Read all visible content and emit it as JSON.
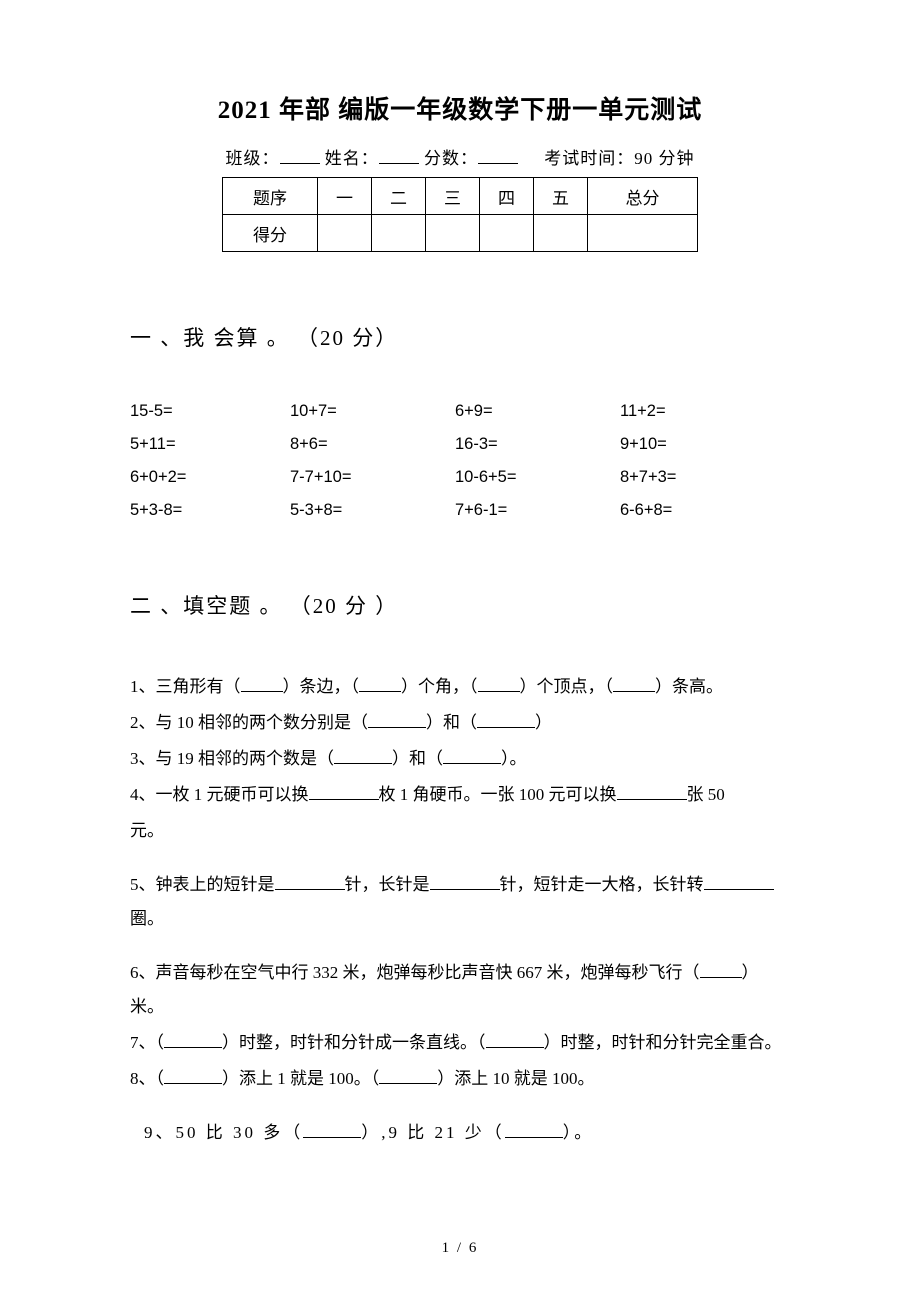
{
  "title": "2021 年部 编版一年级数学下册一单元测试",
  "info": {
    "class_label": "班级：",
    "name_label": "姓名：",
    "score_label": "分数：",
    "time_label": "考试时间：90 分钟"
  },
  "score_table": {
    "row1": [
      "题序",
      "一",
      "二",
      "三",
      "四",
      "五",
      "总分"
    ],
    "row2_label": "得分"
  },
  "section1": {
    "heading": "一 、我 会算 。 （20 分）",
    "problems": [
      "15-5=",
      "10+7=",
      "6+9=",
      "11+2=",
      "5+11=",
      "8+6=",
      "16-3=",
      "9+10=",
      "6+0+2=",
      "7-7+10=",
      "10-6+5=",
      "8+7+3=",
      "5+3-8=",
      "5-3+8=",
      "7+6-1=",
      "6-6+8="
    ]
  },
  "section2": {
    "heading": "二 、填空题 。 （20 分 ）",
    "q1": {
      "a": "1、三角形有（",
      "b": "）条边，（",
      "c": "）个角，（",
      "d": "）个顶点，（",
      "e": "）条高。"
    },
    "q2": {
      "a": "2、与 10 相邻的两个数分别是（",
      "b": "）和（",
      "c": "）"
    },
    "q3": {
      "a": "3、与 19 相邻的两个数是（",
      "b": "）和（",
      "c": "）。"
    },
    "q4": {
      "a": "4、一枚 1 元硬币可以换",
      "b": "枚 1 角硬币。一张 100 元可以换",
      "c": "张 50",
      "d": "元。"
    },
    "q5": {
      "a": "5、钟表上的短针是",
      "b": "针，长针是",
      "c": "针，短针走一大格，长针转",
      "d": "圈。"
    },
    "q6": {
      "a": "6、声音每秒在空气中行 332 米，炮弹每秒比声音快 667 米，炮弹每秒飞行（",
      "b": "）米。"
    },
    "q7": {
      "a": "7、（",
      "b": "）时整，时针和分针成一条直线。（",
      "c": "）时整，时针和分针完全重合。"
    },
    "q8": {
      "a": "8、（",
      "b": "）添上 1 就是 100。（",
      "c": "）添上 10 就是 100。"
    },
    "q9": {
      "a": "9、50 比 30 多（",
      "b": "）,9 比 21 少（",
      "c": "）。"
    }
  },
  "footer": "1 / 6"
}
